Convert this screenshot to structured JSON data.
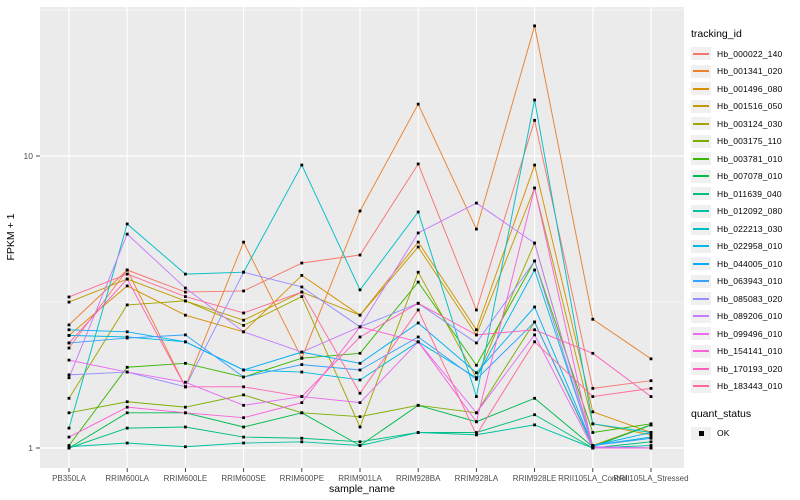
{
  "chart_data": {
    "type": "line",
    "title": "",
    "xlabel": "sample_name",
    "ylabel": "FPKM + 1",
    "y_scale": "log10",
    "ylim": [
      0.83,
      32.5
    ],
    "y_ticks": [
      {
        "label": "1",
        "value": 1
      },
      {
        "label": "10",
        "value": 10
      }
    ],
    "y_minor_ticks": [
      3.162,
      31.62
    ],
    "grid": true,
    "legend_position": "right",
    "legend_title": "tracking_id",
    "quant_legend": {
      "title": "quant_status",
      "items": [
        {
          "label": "OK",
          "marker": "black-square"
        }
      ]
    },
    "panel_bg": "#EBEBEB",
    "grid_color": "#FFFFFF",
    "marker_color": "#000000",
    "tick_text_color": "#4D4D4D",
    "categories": [
      "PB350LA",
      "RRIM600LA",
      "RRIM600LE",
      "RRIM600SE",
      "RRIM600PE",
      "RRIM901LA",
      "RRIM928BA",
      "RRIM928LA",
      "RRIM928LE",
      "RRII105LA_Control",
      "RRII105LA_Stressed"
    ],
    "series": [
      {
        "name": "Hb_000022_140",
        "color": "#F8766D",
        "values": [
          2.2,
          4.07,
          3.42,
          3.45,
          4.3,
          4.58,
          9.39,
          2.97,
          13.25,
          1.6,
          1.7
        ]
      },
      {
        "name": "Hb_001341_020",
        "color": "#EA8331",
        "values": [
          2.64,
          4.07,
          1.62,
          5.07,
          2.03,
          6.48,
          15.05,
          5.62,
          27.9,
          2.76,
          2.02
        ]
      },
      {
        "name": "Hb_001496_080",
        "color": "#D89000",
        "values": [
          2.43,
          3.59,
          2.85,
          2.5,
          3.9,
          2.85,
          5.07,
          2.54,
          9.31,
          1.33,
          1.13
        ]
      },
      {
        "name": "Hb_001516_050",
        "color": "#C09B00",
        "values": [
          3.16,
          3.79,
          3.19,
          2.74,
          3.42,
          2.85,
          4.88,
          2.44,
          7.77,
          1.21,
          1.11
        ]
      },
      {
        "name": "Hb_003124_030",
        "color": "#A3A500",
        "values": [
          1.48,
          3.09,
          3.19,
          2.63,
          3.3,
          1.18,
          4.0,
          1.74,
          5.03,
          1.02,
          1.2
        ]
      },
      {
        "name": "Hb_003175_110",
        "color": "#7CAE00",
        "values": [
          1.32,
          1.44,
          1.38,
          1.52,
          1.32,
          1.28,
          1.4,
          1.32,
          2.7,
          1.01,
          1.2
        ]
      },
      {
        "name": "Hb_003781_010",
        "color": "#39B600",
        "values": [
          1.02,
          1.89,
          1.95,
          1.75,
          2.03,
          2.11,
          3.7,
          1.92,
          4.37,
          1.13,
          1.21
        ]
      },
      {
        "name": "Hb_007078_010",
        "color": "#00BB4E",
        "values": [
          1.0,
          1.32,
          1.32,
          1.18,
          1.32,
          1.02,
          1.4,
          1.23,
          1.48,
          1.01,
          1.2
        ]
      },
      {
        "name": "Hb_011639_040",
        "color": "#00BF7D",
        "values": [
          1.0,
          1.17,
          1.18,
          1.09,
          1.08,
          1.05,
          1.13,
          1.13,
          1.3,
          1.0,
          1.05
        ]
      },
      {
        "name": "Hb_012092_080",
        "color": "#00C1A3",
        "values": [
          1.01,
          1.04,
          1.01,
          1.04,
          1.05,
          1.02,
          1.13,
          1.11,
          1.2,
          1.0,
          1.02
        ]
      },
      {
        "name": "Hb_022213_030",
        "color": "#00BFC4",
        "values": [
          1.17,
          5.85,
          3.94,
          4.0,
          9.31,
          3.48,
          6.43,
          1.5,
          15.55,
          1.21,
          1.13
        ]
      },
      {
        "name": "Hb_022958_010",
        "color": "#00BAE0",
        "values": [
          2.43,
          2.4,
          2.31,
          1.85,
          1.82,
          1.71,
          2.31,
          1.74,
          4.07,
          1.02,
          1.09
        ]
      },
      {
        "name": "Hb_044005_010",
        "color": "#00B0F6",
        "values": [
          2.54,
          2.5,
          2.31,
          1.85,
          2.13,
          1.95,
          2.68,
          1.81,
          3.04,
          1.02,
          1.13
        ]
      },
      {
        "name": "Hb_063943_010",
        "color": "#35A2FF",
        "values": [
          2.29,
          2.38,
          2.44,
          1.75,
          1.93,
          1.85,
          2.4,
          1.72,
          2.7,
          1.02,
          1.08
        ]
      },
      {
        "name": "Hb_085083_020",
        "color": "#9590FF",
        "values": [
          1.78,
          1.82,
          1.62,
          4.0,
          3.56,
          2.6,
          3.13,
          2.29,
          4.37,
          1.01,
          1.0
        ]
      },
      {
        "name": "Hb_089206_010",
        "color": "#C77CFF",
        "values": [
          1.74,
          5.4,
          3.53,
          2.5,
          2.13,
          2.6,
          5.45,
          6.9,
          5.03,
          1.01,
          1.0
        ]
      },
      {
        "name": "Hb_099496_010",
        "color": "#E76BF3",
        "values": [
          2.0,
          1.82,
          1.68,
          1.4,
          1.5,
          1.43,
          2.31,
          1.32,
          2.44,
          1.0,
          1.0
        ]
      },
      {
        "name": "Hb_154141_010",
        "color": "#FA62DB",
        "values": [
          1.09,
          1.38,
          1.32,
          1.27,
          1.43,
          2.6,
          2.31,
          1.23,
          7.77,
          1.0,
          1.0
        ]
      },
      {
        "name": "Hb_170193_020",
        "color": "#FF62BC",
        "values": [
          2.29,
          3.79,
          1.62,
          1.62,
          1.5,
          2.4,
          3.13,
          2.44,
          2.54,
          2.11,
          1.5
        ]
      },
      {
        "name": "Hb_183443_010",
        "color": "#FF6A98",
        "values": [
          3.29,
          3.94,
          3.3,
          2.9,
          3.42,
          1.54,
          2.97,
          1.11,
          2.31,
          1.5,
          1.6
        ]
      }
    ]
  }
}
